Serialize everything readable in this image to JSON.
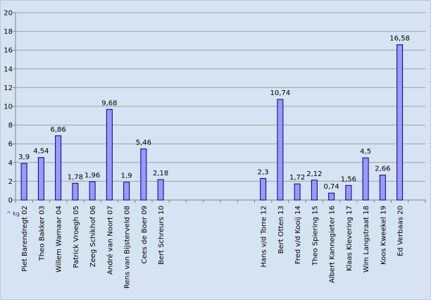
{
  "chart_data": {
    "type": "bar",
    "title": "",
    "xlabel": "",
    "ylabel": "",
    "unit_label": "^ kg",
    "ylim": [
      0,
      20
    ],
    "yticks": [
      0,
      2,
      4,
      6,
      8,
      10,
      12,
      14,
      16,
      18,
      20
    ],
    "grid": true,
    "categories": [
      "Piet Barendregt 02",
      "Theo Bakker 03",
      "Willem Warnaar 04",
      "Patrick Vroegh 05",
      "Zeeg Schikhof 06",
      "André van Noort 07",
      "Rens van Bijsterveld 08",
      "Cees de Boer 09",
      "Bert Schreurs 10",
      "",
      "",
      "",
      "",
      "",
      "Hans v/d Torre 12",
      "Bert Otten 13",
      "Fred v/d Kooij 14",
      "Theo Spiering 15",
      "Albert Kannegieter 16",
      "Klaas Klevering 17",
      "Wim Langstraat 18",
      "Koos Kweekel 19",
      "Ed Verbaas 20",
      ""
    ],
    "values": [
      3.9,
      4.54,
      6.86,
      1.78,
      1.96,
      9.68,
      1.9,
      5.46,
      2.18,
      null,
      null,
      null,
      null,
      null,
      2.3,
      10.74,
      1.72,
      2.12,
      0.74,
      1.56,
      4.5,
      2.66,
      16.58,
      null
    ],
    "data_labels": [
      "3,9",
      "4,54",
      "6,86",
      "1,78",
      "1,96",
      "9,68",
      "1,9",
      "5,46",
      "2,18",
      "",
      "",
      "",
      "",
      "",
      "2,3",
      "10,74",
      "1,72",
      "2,12",
      "0,74",
      "1,56",
      "4,5",
      "2,66",
      "16,58",
      ""
    ],
    "colors": {
      "background": "#d6e3f3",
      "plot_area": "#d6e3f3",
      "bar_fill": "#9999ff",
      "bar_stroke": "#000080",
      "grid": "#a0a0a0",
      "axis": "#808080"
    }
  }
}
